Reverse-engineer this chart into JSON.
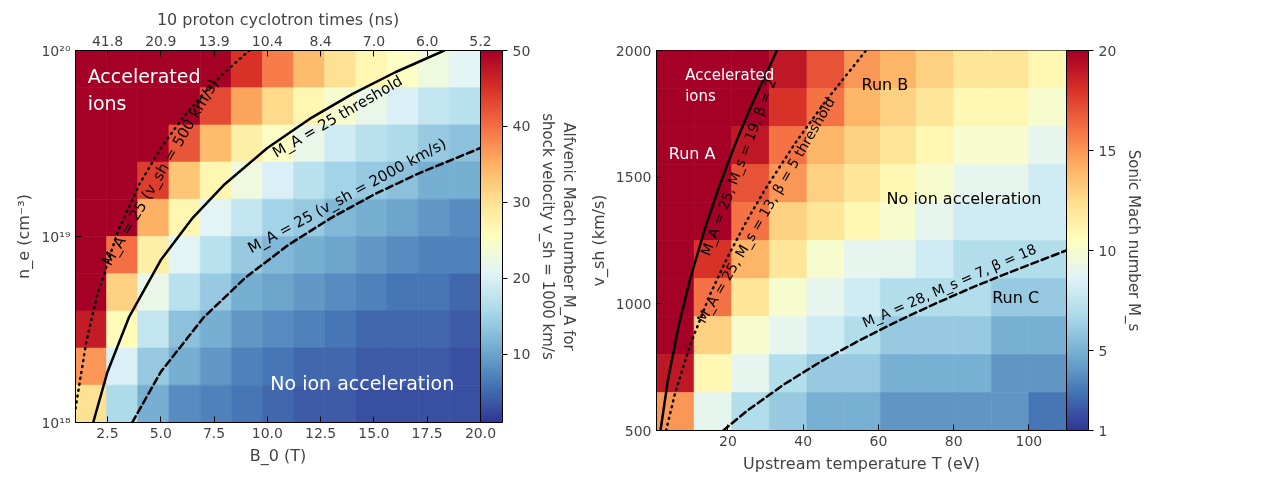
{
  "chart_data": [
    {
      "type": "heatmap",
      "xlabel": "B_0 (T)",
      "ylabel": "n_e (cm⁻³)",
      "x2label": "10 proton cyclotron times (ns)",
      "clabel": "Alfvenic Mach number M_A for\nshock velocity v_sh = 1000 km/s",
      "xlim": [
        1,
        20
      ],
      "xticks": [
        2.5,
        {
          "value": 5,
          "label": "5.0"
        },
        7.5,
        {
          "value": 10,
          "label": "10.0"
        },
        12.5,
        {
          "value": 15,
          "label": "15.0"
        },
        17.5,
        {
          "value": 20,
          "label": "20.0"
        }
      ],
      "ylim": [
        1e+18,
        1e+20
      ],
      "yticks": [
        {
          "value": 1e+18,
          "label": "10¹⁸"
        },
        {
          "value": 1e+19,
          "label": "10¹⁹"
        },
        {
          "value": 1e+20,
          "label": "10²⁰"
        }
      ],
      "log": "y",
      "clim": [
        1,
        50
      ],
      "cticks": [
        10,
        20,
        30,
        40,
        50
      ],
      "x": [
        1.73,
        3.19,
        4.65,
        6.12,
        7.58,
        9.04,
        10.5,
        11.96,
        13.42,
        14.88,
        16.35,
        17.81,
        19.27
      ],
      "y": [
        7.94e+19,
        5.01e+19,
        3.16e+19,
        2e+19,
        1.26e+19,
        7.94e+18,
        5.01e+18,
        3.16e+18,
        2e+18,
        1.26e+18
      ],
      "cells": [
        [
          50,
          50,
          50,
          50,
          50,
          45,
          39,
          34,
          30,
          27,
          25,
          23,
          21
        ],
        [
          50,
          50,
          50,
          50,
          43,
          36,
          31,
          27,
          24,
          22,
          20,
          18,
          17
        ],
        [
          50,
          50,
          50,
          42,
          34,
          28,
          25,
          22,
          19,
          17,
          16,
          14,
          13
        ],
        [
          50,
          50,
          44,
          33,
          27,
          23,
          20,
          17,
          15,
          14,
          13,
          11,
          11
        ],
        [
          50,
          50,
          35,
          27,
          21,
          18,
          15,
          14,
          12,
          11,
          10,
          9,
          8
        ],
        [
          50,
          40,
          28,
          21,
          17,
          14,
          12,
          11,
          10,
          9,
          8,
          7,
          7
        ],
        [
          50,
          32,
          22,
          17,
          14,
          11,
          10,
          9,
          8,
          7,
          6,
          6,
          5
        ],
        [
          47,
          26,
          18,
          13,
          11,
          9,
          8,
          7,
          6,
          5,
          5,
          5,
          4
        ],
        [
          37,
          20,
          14,
          11,
          9,
          7,
          6,
          5,
          5,
          4,
          4,
          4,
          3
        ],
        [
          30,
          16,
          11,
          8,
          7,
          6,
          5,
          4,
          4,
          3,
          3,
          3,
          3
        ]
      ],
      "series": [
        {
          "type": "line",
          "name": "M_A = 25 (v_sh = 500 km/s)",
          "color": "#000000",
          "line_style": "dotted",
          "x": [
            1,
            1.5,
            2,
            3,
            4,
            5,
            6,
            7,
            8,
            9.15
          ],
          "values": [
            1.19e+18,
            2.69e+18,
            4.78e+18,
            1.075e+19,
            1.91e+19,
            2.99e+19,
            4.3e+19,
            5.85e+19,
            7.64e+19,
            1e+20
          ]
        },
        {
          "type": "line",
          "name": "M_A = 25 threshold",
          "color": "#000000",
          "line_style": "solid",
          "x": [
            1.83,
            2.5,
            3.5,
            5,
            6.5,
            8,
            10,
            12,
            14,
            16,
            18.3
          ],
          "values": [
            1e+18,
            1.87e+18,
            3.66e+18,
            7.47e+18,
            1.26e+19,
            1.91e+19,
            2.99e+19,
            4.3e+19,
            5.85e+19,
            7.64e+19,
            1e+20
          ]
        },
        {
          "type": "line",
          "name": "M_A = 25 (v_sh = 2000 km/s)",
          "color": "#000000",
          "line_style": "dashed",
          "x": [
            3.66,
            5,
            7,
            9,
            11,
            13,
            15,
            17,
            20
          ],
          "values": [
            1e+18,
            1.87e+18,
            3.66e+18,
            6.05e+18,
            9.03e+18,
            1.26e+19,
            1.68e+19,
            2.16e+19,
            2.99e+19
          ]
        }
      ],
      "annotations": [
        "Accelerated\nions",
        "No ion acceleration",
        "41.8",
        "20.9",
        "13.9",
        "10.4",
        "8.4",
        "7.0",
        "6.0",
        "5.2"
      ]
    },
    {
      "type": "heatmap",
      "xlabel": "Upstream temperature T (eV)",
      "ylabel": "v_sh (km/s)",
      "clabel": "Sonic Mach number M_s",
      "xlim": [
        1,
        110
      ],
      "xticks": [
        20,
        40,
        60,
        80,
        100
      ],
      "ylim": [
        500,
        2000
      ],
      "yticks": [
        500,
        1000,
        1500,
        2000
      ],
      "clim": [
        1,
        20
      ],
      "cticks": [
        1,
        5,
        10,
        15,
        20
      ],
      "x": [
        6,
        16,
        26,
        36,
        46,
        56,
        65,
        75,
        85,
        95,
        105
      ],
      "y": [
        1925,
        1775,
        1625,
        1475,
        1325,
        1175,
        1025,
        875,
        725,
        575
      ],
      "cells": [
        [
          20,
          20,
          20,
          19,
          17,
          15,
          14,
          13,
          12,
          12,
          11
        ],
        [
          20,
          20,
          20,
          18,
          16,
          14,
          13,
          12,
          11,
          11,
          10
        ],
        [
          20,
          20,
          19,
          16,
          14,
          13,
          12,
          11,
          10,
          10,
          9
        ],
        [
          20,
          20,
          17,
          15,
          13,
          12,
          11,
          10,
          9,
          9,
          8
        ],
        [
          20,
          20,
          16,
          13,
          12,
          11,
          10,
          9,
          8,
          8,
          8
        ],
        [
          20,
          18,
          14,
          12,
          10,
          9,
          9,
          8,
          7,
          7,
          7
        ],
        [
          20,
          16,
          12,
          10,
          9,
          8,
          7,
          7,
          7,
          6,
          6
        ],
        [
          20,
          13,
          10,
          9,
          8,
          7,
          6,
          6,
          6,
          5,
          5
        ],
        [
          19,
          11,
          9,
          7,
          6,
          6,
          5,
          5,
          5,
          4,
          4
        ],
        [
          15,
          9,
          7,
          6,
          5,
          5,
          4,
          4,
          4,
          4,
          3
        ]
      ],
      "series": [
        {
          "type": "line",
          "name": "M_A = 25, M_s = 19, β = 2",
          "color": "#000000",
          "line_style": "solid",
          "x": [
            2.06,
            4,
            7,
            10,
            14,
            18,
            22,
            26,
            33
          ],
          "values": [
            500,
            696,
            921,
            1101,
            1303,
            1477,
            1633,
            1775,
            2000
          ]
        },
        {
          "type": "line",
          "name": "M_A = 25, M_s = 13, β = 5 threshold",
          "color": "#000000",
          "line_style": "dotted",
          "x": [
            3.54,
            6,
            10,
            15,
            20,
            25,
            30,
            38,
            46,
            56.7
          ],
          "values": [
            500,
            651,
            840,
            1029,
            1188,
            1328,
            1455,
            1637,
            1801,
            2000
          ]
        },
        {
          "type": "line",
          "name": "M_A = 28, M_s = 7, β = 18",
          "color": "#000000",
          "line_style": "dashed",
          "x": [
            18.75,
            25,
            35,
            45,
            55,
            65,
            75,
            85,
            95,
            110
          ],
          "values": [
            500,
            577,
            683,
            775,
            856,
            931,
            1000,
            1065,
            1125,
            1211
          ]
        }
      ],
      "annotations": [
        "Accelerated\nions",
        "Run A",
        "Run B",
        "No ion acceleration",
        "Run C"
      ]
    }
  ]
}
